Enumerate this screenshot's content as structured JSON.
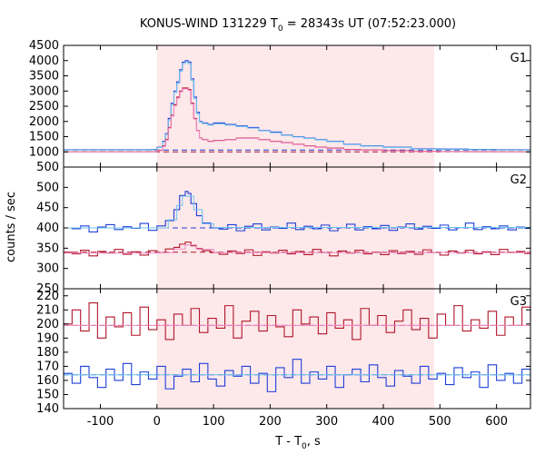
{
  "chart_data": {
    "type": "line",
    "title_main": "KONUS-WIND 131229 T",
    "title_sub": "0",
    "title_rest": " = 28343s UT (07:52:23.000)",
    "xlabel_main": "T - T",
    "xlabel_sub": "0",
    "xlabel_rest": ", s",
    "ylabel": "counts / sec",
    "xlim": [
      -165,
      660
    ],
    "xticks": [
      -100,
      0,
      100,
      200,
      300,
      400,
      500,
      600
    ],
    "shaded_interval": [
      0,
      490
    ],
    "shade_color": "#fde8ea",
    "colors": {
      "blue": "#1f3fd6",
      "red": "#b0162a",
      "cyan": "#6fc4ee",
      "pink": "#f08cc8"
    },
    "panels": [
      {
        "label": "G1",
        "ylim": [
          500,
          4500
        ],
        "yticks": [
          500,
          1000,
          1500,
          2000,
          2500,
          3000,
          3500,
          4000,
          4500
        ],
        "background_blue": 1060,
        "background_red": 1000,
        "series": [
          {
            "name": "",
            "color": "blue",
            "x": [
              -165,
              -10,
              0,
              10,
              15,
              20,
              25,
              30,
              35,
              40,
              45,
              50,
              55,
              60,
              65,
              70,
              75,
              80,
              90,
              100,
              120,
              140,
              160,
              180,
              200,
              220,
              240,
              260,
              280,
              300,
              330,
              360,
              400,
              450,
              500,
              550,
              600,
              660
            ],
            "y": [
              1070,
              1080,
              1150,
              1350,
              1600,
              2100,
              2600,
              3000,
              3300,
              3700,
              3950,
              4000,
              3950,
              3400,
              2800,
              2300,
              2000,
              1950,
              1900,
              1950,
              1900,
              1850,
              1800,
              1700,
              1650,
              1550,
              1500,
              1450,
              1400,
              1350,
              1250,
              1200,
              1150,
              1100,
              1090,
              1080,
              1070,
              1070
            ]
          },
          {
            "name": "",
            "color": "cyan",
            "x": [
              -165,
              -10,
              0,
              10,
              15,
              20,
              25,
              30,
              35,
              40,
              45,
              50,
              55,
              60,
              65,
              70,
              75,
              80,
              90,
              100,
              120,
              140,
              160,
              180,
              200,
              220,
              240,
              260,
              280,
              300,
              330,
              360,
              400,
              450,
              500,
              550,
              600,
              660
            ],
            "y": [
              1060,
              1070,
              1140,
              1330,
              1580,
              2050,
              2550,
              2950,
              3250,
              3650,
              3900,
              3950,
              3900,
              3350,
              2750,
              2250,
              1980,
              1930,
              1880,
              1920,
              1880,
              1830,
              1780,
              1690,
              1630,
              1540,
              1490,
              1440,
              1390,
              1340,
              1240,
              1190,
              1140,
              1090,
              1080,
              1070,
              1060,
              1060
            ]
          },
          {
            "name": "",
            "color": "red",
            "x": [
              -165,
              -10,
              0,
              10,
              15,
              20,
              25,
              30,
              35,
              40,
              45,
              50,
              55,
              60,
              65,
              70,
              75,
              80,
              90,
              100,
              120,
              140,
              160,
              180,
              200,
              220,
              240,
              260,
              280,
              300,
              330,
              360,
              400,
              450,
              500,
              550,
              600,
              660
            ],
            "y": [
              1000,
              1005,
              1050,
              1200,
              1400,
              1800,
              2200,
              2550,
              2800,
              3000,
              3100,
              3100,
              3050,
              2600,
              2100,
              1700,
              1450,
              1400,
              1350,
              1380,
              1400,
              1450,
              1450,
              1400,
              1350,
              1300,
              1250,
              1200,
              1150,
              1120,
              1080,
              1060,
              1040,
              1020,
              1010,
              1005,
              1000,
              1000
            ]
          },
          {
            "name": "",
            "color": "pink",
            "x": [
              -165,
              -10,
              0,
              10,
              15,
              20,
              25,
              30,
              35,
              40,
              45,
              50,
              55,
              60,
              65,
              70,
              75,
              80,
              90,
              100,
              120,
              140,
              160,
              180,
              200,
              220,
              240,
              260,
              280,
              300,
              330,
              360,
              400,
              450,
              500,
              550,
              600,
              660
            ],
            "y": [
              995,
              1000,
              1040,
              1180,
              1380,
              1780,
              2180,
              2520,
              2770,
              2970,
              3070,
              3070,
              3020,
              2570,
              2080,
              1690,
              1440,
              1390,
              1340,
              1370,
              1390,
              1440,
              1440,
              1390,
              1340,
              1290,
              1240,
              1190,
              1140,
              1110,
              1070,
              1050,
              1030,
              1015,
              1005,
              1000,
              995,
              995
            ]
          }
        ]
      },
      {
        "label": "G2",
        "ylim": [
          250,
          550
        ],
        "yticks": [
          250,
          300,
          350,
          400,
          450,
          500
        ],
        "background_blue": 400,
        "background_red": 340,
        "series": [
          {
            "name": "",
            "color": "blue",
            "x": [
              -165,
              -150,
              -135,
              -120,
              -105,
              -90,
              -75,
              -60,
              -45,
              -30,
              -15,
              0,
              15,
              30,
              40,
              50,
              55,
              60,
              70,
              80,
              95,
              110,
              125,
              140,
              155,
              170,
              185,
              200,
              215,
              230,
              245,
              260,
              275,
              290,
              305,
              320,
              335,
              350,
              365,
              380,
              395,
              410,
              425,
              440,
              455,
              470,
              485,
              500,
              515,
              530,
              545,
              560,
              575,
              590,
              605,
              620,
              635,
              650,
              660
            ],
            "y": [
              400,
              398,
              405,
              390,
              402,
              408,
              396,
              403,
              399,
              411,
              394,
              405,
              418,
              445,
              480,
              490,
              485,
              460,
              430,
              412,
              400,
              397,
              408,
              393,
              404,
              410,
              395,
              402,
              399,
              412,
              396,
              404,
              398,
              407,
              393,
              401,
              409,
              395,
              403,
              398,
              406,
              394,
              402,
              410,
              397,
              404,
              399,
              407,
              395,
              401,
              412,
              396,
              403,
              398,
              405,
              395,
              402,
              399,
              400
            ]
          },
          {
            "name": "",
            "color": "cyan",
            "x": [
              -165,
              0,
              20,
              35,
              45,
              55,
              65,
              80,
              100,
              660
            ],
            "y": [
              400,
              400,
              420,
              455,
              478,
              478,
              445,
              410,
              401,
              400
            ]
          },
          {
            "name": "",
            "color": "red",
            "x": [
              -165,
              -150,
              -135,
              -120,
              -105,
              -90,
              -75,
              -60,
              -45,
              -30,
              -15,
              0,
              15,
              30,
              40,
              50,
              60,
              70,
              80,
              95,
              110,
              125,
              140,
              155,
              170,
              185,
              200,
              215,
              230,
              245,
              260,
              275,
              290,
              305,
              320,
              335,
              350,
              365,
              380,
              395,
              410,
              425,
              440,
              455,
              470,
              485,
              500,
              515,
              530,
              545,
              560,
              575,
              590,
              605,
              620,
              635,
              650,
              660
            ],
            "y": [
              340,
              336,
              345,
              331,
              342,
              338,
              347,
              335,
              341,
              333,
              344,
              339,
              348,
              352,
              360,
              365,
              356,
              349,
              344,
              339,
              335,
              343,
              337,
              346,
              332,
              341,
              338,
              345,
              336,
              342,
              334,
              347,
              339,
              331,
              343,
              338,
              345,
              336,
              340,
              334,
              344,
              337,
              342,
              335,
              346,
              339,
              333,
              343,
              338,
              345,
              336,
              341,
              334,
              347,
              339,
              342,
              337,
              340
            ]
          },
          {
            "name": "",
            "color": "pink",
            "x": [
              -165,
              0,
              30,
              50,
              70,
              100,
              660
            ],
            "y": [
              338,
              339,
              348,
              358,
              347,
              339,
              338
            ]
          }
        ]
      },
      {
        "label": "G3",
        "ylim": [
          140,
          225
        ],
        "yticks": [
          140,
          150,
          160,
          170,
          180,
          190,
          200,
          210,
          220
        ],
        "background_blue": 164,
        "background_red": 199,
        "series": [
          {
            "name": "",
            "color": "red",
            "x": [
              -165,
              -150,
              -135,
              -120,
              -105,
              -90,
              -75,
              -60,
              -45,
              -30,
              -15,
              0,
              15,
              30,
              45,
              60,
              75,
              90,
              105,
              120,
              135,
              150,
              165,
              180,
              195,
              210,
              225,
              240,
              255,
              270,
              285,
              300,
              315,
              330,
              345,
              360,
              375,
              390,
              405,
              420,
              435,
              450,
              465,
              480,
              495,
              510,
              525,
              540,
              555,
              570,
              585,
              600,
              615,
              630,
              645,
              660
            ],
            "y": [
              200,
              210,
              195,
              215,
              190,
              205,
              198,
              208,
              192,
              212,
              196,
              203,
              189,
              207,
              199,
              211,
              194,
              204,
              197,
              213,
              190,
              202,
              209,
              195,
              206,
              198,
              191,
              210,
              200,
              205,
              193,
              208,
              197,
              203,
              189,
              211,
              199,
              206,
              194,
              202,
              210,
              196,
              204,
              190,
              207,
              199,
              213,
              195,
              203,
              197,
              209,
              192,
              205,
              199,
              212,
              201
            ]
          },
          {
            "name": "",
            "color": "pink",
            "x": [
              -165,
              660
            ],
            "y": [
              199,
              199
            ]
          },
          {
            "name": "",
            "color": "blue",
            "x": [
              -165,
              -150,
              -135,
              -120,
              -105,
              -90,
              -75,
              -60,
              -45,
              -30,
              -15,
              0,
              15,
              30,
              45,
              60,
              75,
              90,
              105,
              120,
              135,
              150,
              165,
              180,
              195,
              210,
              225,
              240,
              255,
              270,
              285,
              300,
              315,
              330,
              345,
              360,
              375,
              390,
              405,
              420,
              435,
              450,
              465,
              480,
              495,
              510,
              525,
              540,
              555,
              570,
              585,
              600,
              615,
              630,
              645,
              660
            ],
            "y": [
              165,
              158,
              170,
              162,
              155,
              168,
              160,
              172,
              157,
              166,
              161,
              170,
              154,
              163,
              168,
              159,
              172,
              161,
              156,
              167,
              163,
              170,
              158,
              165,
              152,
              169,
              162,
              175,
              158,
              166,
              161,
              170,
              155,
              164,
              168,
              159,
              171,
              162,
              156,
              167,
              163,
              158,
              170,
              161,
              165,
              157,
              169,
              162,
              166,
              155,
              171,
              160,
              165,
              158,
              168,
              148
            ]
          },
          {
            "name": "",
            "color": "cyan",
            "x": [
              -165,
              660
            ],
            "y": [
              164,
              164
            ]
          }
        ]
      }
    ]
  }
}
